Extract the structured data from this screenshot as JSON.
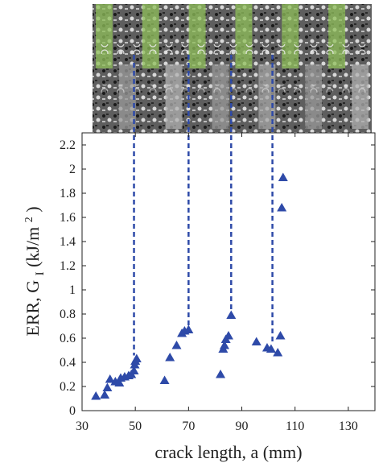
{
  "chart_data": {
    "type": "scatter",
    "xlabel": "crack length, a (mm)",
    "ylabel": {
      "prefix": "ERR, G",
      "sub": "I",
      "mid": " (kJ/m",
      "sup": "2",
      "suffix": ")"
    },
    "xlim": [
      30,
      140
    ],
    "ylim": [
      0,
      2.3
    ],
    "x_ticks": [
      30,
      50,
      70,
      90,
      110,
      130
    ],
    "y_ticks": [
      0,
      0.2,
      0.4,
      0.6,
      0.8,
      1,
      1.2,
      1.4,
      1.6,
      1.8,
      2,
      2.2
    ],
    "y_tick_labels": [
      "0",
      "0.2",
      "0.4",
      "0.6",
      "0.8",
      "1",
      "1.2",
      "1.4",
      "1.6",
      "1.8",
      "2",
      "2.2"
    ],
    "grid": false,
    "marker": "triangle",
    "marker_color": "#2e4aa8",
    "guide_line_color": "#2e4aa8",
    "guide_lines_x": [
      49.5,
      70,
      86,
      101.5
    ],
    "series": [
      {
        "points": [
          [
            35.2,
            0.12
          ],
          [
            38.5,
            0.13
          ],
          [
            39.5,
            0.19
          ],
          [
            40.5,
            0.26
          ],
          [
            42.5,
            0.24
          ],
          [
            44.0,
            0.23
          ],
          [
            44.5,
            0.27
          ],
          [
            46.0,
            0.28
          ],
          [
            47.5,
            0.29
          ],
          [
            48.5,
            0.3
          ],
          [
            49.5,
            0.33
          ],
          [
            49.8,
            0.38
          ],
          [
            50.0,
            0.41
          ],
          [
            50.5,
            0.43
          ],
          [
            61.0,
            0.25
          ],
          [
            63.0,
            0.44
          ],
          [
            65.5,
            0.54
          ],
          [
            67.5,
            0.64
          ],
          [
            68.5,
            0.66
          ],
          [
            70.0,
            0.67
          ],
          [
            82.0,
            0.3
          ],
          [
            83.0,
            0.51
          ],
          [
            83.5,
            0.54
          ],
          [
            84.0,
            0.59
          ],
          [
            85.0,
            0.62
          ],
          [
            86.0,
            0.79
          ],
          [
            95.5,
            0.57
          ],
          [
            99.5,
            0.52
          ],
          [
            101.0,
            0.51
          ],
          [
            103.5,
            0.48
          ],
          [
            104.5,
            0.62
          ],
          [
            105.0,
            1.68
          ],
          [
            105.5,
            1.93
          ]
        ]
      }
    ]
  },
  "photo": {
    "strips": [
      {
        "color": "#8fbf5a"
      },
      {
        "color": "#9a9a9a"
      },
      {
        "color": "#8fbf5a"
      },
      {
        "color": "#b0b0b0"
      },
      {
        "color": "#8fbf5a"
      },
      {
        "color": "#9a9a9a"
      },
      {
        "color": "#8fbf5a"
      },
      {
        "color": "#a5a5a5"
      },
      {
        "color": "#8fbf5a"
      },
      {
        "color": "#9a9a9a"
      },
      {
        "color": "#8fbf5a"
      },
      {
        "color": "#b0b0b0"
      }
    ]
  }
}
